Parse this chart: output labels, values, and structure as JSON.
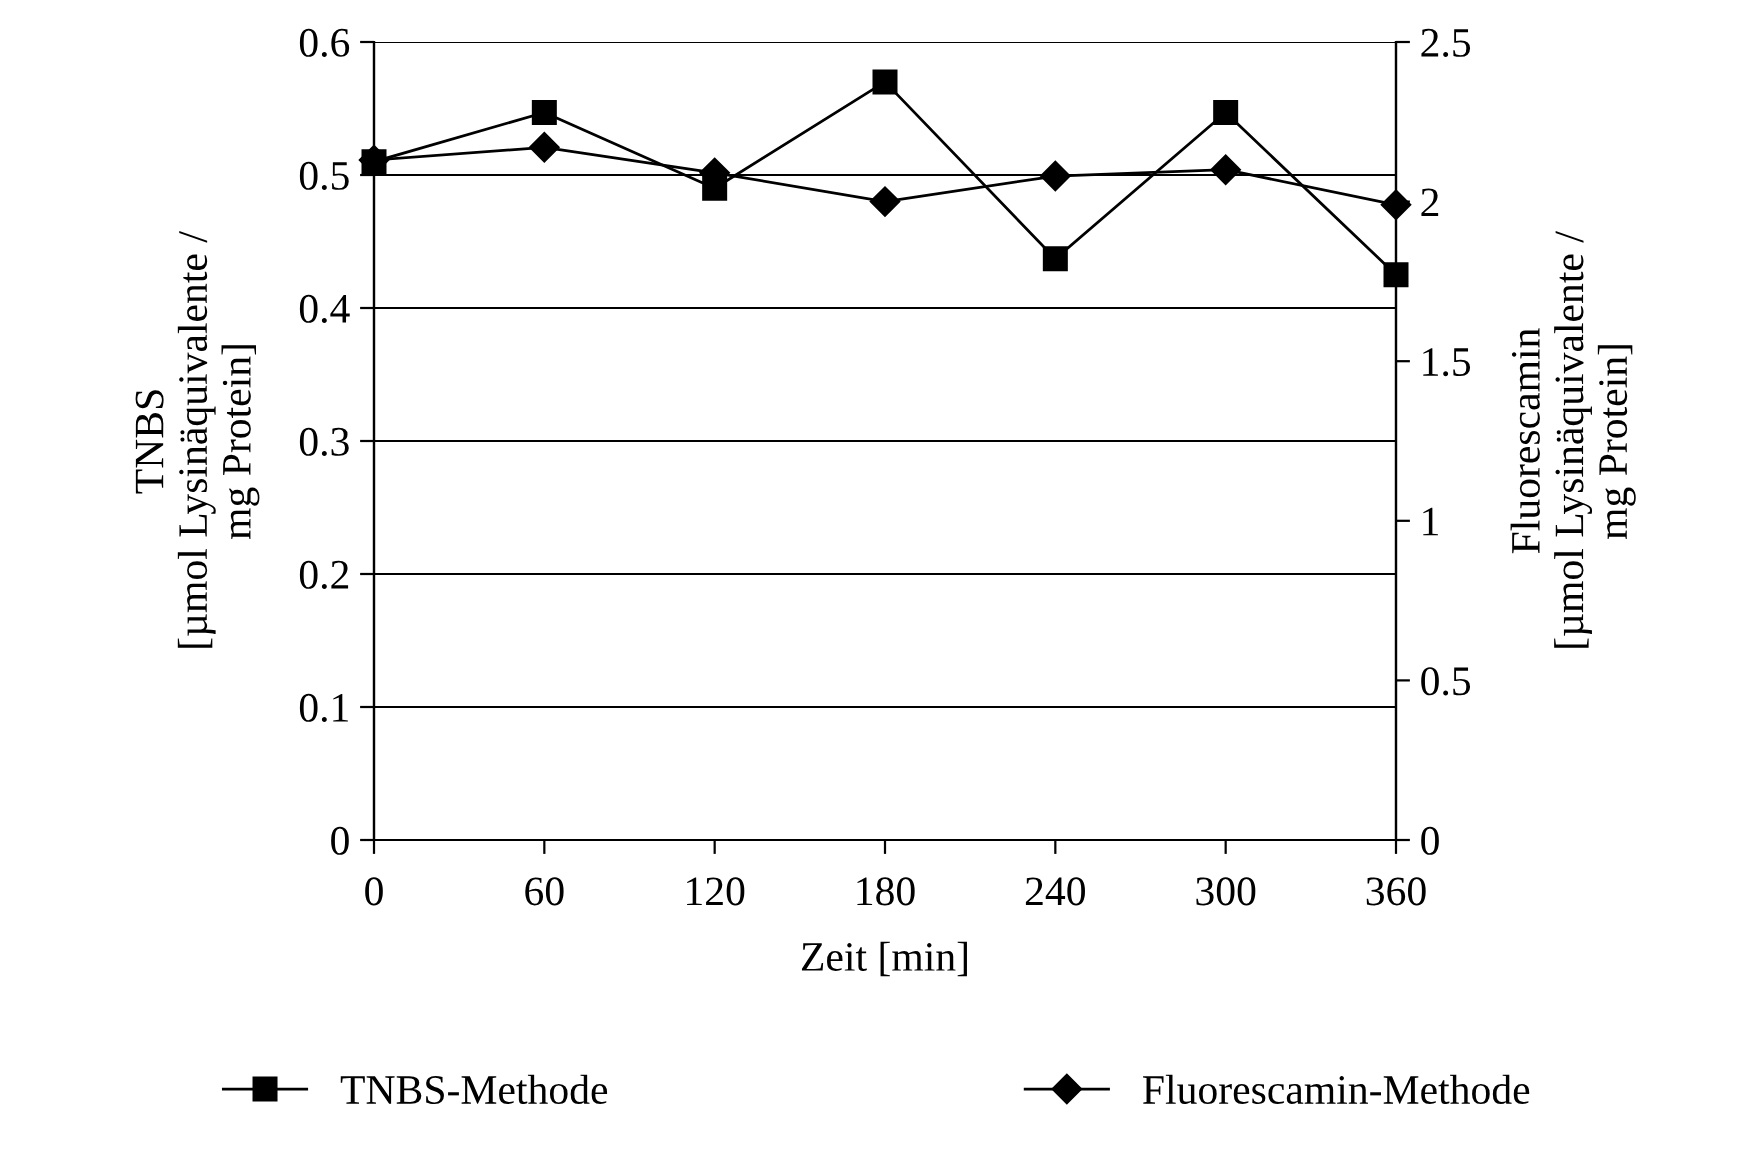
{
  "chart_data": {
    "type": "line",
    "xlabel": "Zeit [min]",
    "ylabel": "TNBS\n[µmol Lysinäquivalente /\nmg Protein]",
    "y2label": "Fluorescamin\n[µmol Lysinäquivalente /\nmg Protein]",
    "x": [
      0,
      60,
      120,
      180,
      240,
      300,
      360
    ],
    "series": [
      {
        "name": "TNBS-Methode",
        "color": "#000000",
        "marker": "square",
        "values": [
          0.51,
          0.547,
          0.49,
          0.57,
          0.437,
          0.547,
          0.425
        ]
      },
      {
        "name": "Fluorescamin-Methode",
        "color": "#000000",
        "marker": "diamond",
        "axis": "y2",
        "values": [
          2.13,
          2.17,
          2.09,
          2.0,
          2.08,
          2.1,
          1.99
        ]
      }
    ],
    "xlim": [
      0,
      360
    ],
    "xticks": [
      0,
      60,
      120,
      180,
      240,
      300,
      360
    ],
    "ylim": [
      0,
      0.6
    ],
    "yticks": [
      0,
      0.1,
      0.2,
      0.3,
      0.4,
      0.5,
      0.6
    ],
    "y2lim": [
      0,
      2.5
    ],
    "y2ticks": [
      0,
      0.5,
      1,
      1.5,
      2,
      2.5
    ],
    "grid": "y",
    "legend": "bottom",
    "line_style": "solid"
  }
}
